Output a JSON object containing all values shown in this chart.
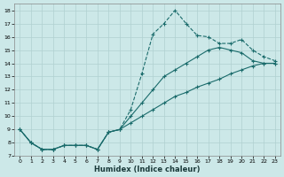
{
  "xlabel": "Humidex (Indice chaleur)",
  "bg_color": "#cce8e8",
  "grid_color": "#b0d0d0",
  "line_color": "#1a6b6b",
  "xlim": [
    -0.5,
    23.5
  ],
  "ylim": [
    7,
    18.5
  ],
  "xticks": [
    0,
    1,
    2,
    3,
    4,
    5,
    6,
    7,
    8,
    9,
    10,
    11,
    12,
    13,
    14,
    15,
    16,
    17,
    18,
    19,
    20,
    21,
    22,
    23
  ],
  "yticks": [
    7,
    8,
    9,
    10,
    11,
    12,
    13,
    14,
    15,
    16,
    17,
    18
  ],
  "line1_x": [
    0,
    1,
    2,
    3,
    4,
    5,
    6,
    7,
    8,
    9,
    10,
    11,
    12,
    13,
    14,
    15,
    16,
    17,
    18,
    19,
    20,
    21,
    22,
    23
  ],
  "line1_y": [
    9.0,
    8.0,
    7.5,
    7.5,
    7.8,
    7.8,
    7.8,
    7.5,
    8.8,
    9.0,
    10.5,
    13.2,
    16.2,
    17.0,
    18.0,
    17.0,
    16.1,
    16.0,
    15.5,
    15.5,
    15.8,
    15.0,
    14.5,
    14.2
  ],
  "line2_x": [
    0,
    1,
    2,
    3,
    4,
    5,
    6,
    7,
    8,
    9,
    10,
    11,
    12,
    13,
    14,
    15,
    16,
    17,
    18,
    19,
    20,
    21,
    22,
    23
  ],
  "line2_y": [
    9.0,
    8.0,
    7.5,
    7.5,
    7.8,
    7.8,
    7.8,
    7.5,
    8.8,
    9.0,
    10.0,
    11.0,
    12.0,
    13.0,
    13.5,
    14.0,
    14.5,
    15.0,
    15.2,
    15.0,
    14.8,
    14.2,
    14.0,
    14.0
  ],
  "line3_x": [
    0,
    1,
    2,
    3,
    4,
    5,
    6,
    7,
    8,
    9,
    10,
    11,
    12,
    13,
    14,
    15,
    16,
    17,
    18,
    19,
    20,
    21,
    22,
    23
  ],
  "line3_y": [
    9.0,
    8.0,
    7.5,
    7.5,
    7.8,
    7.8,
    7.8,
    7.5,
    8.8,
    9.0,
    9.5,
    10.0,
    10.5,
    11.0,
    11.5,
    11.8,
    12.2,
    12.5,
    12.8,
    13.2,
    13.5,
    13.8,
    14.0,
    14.0
  ]
}
